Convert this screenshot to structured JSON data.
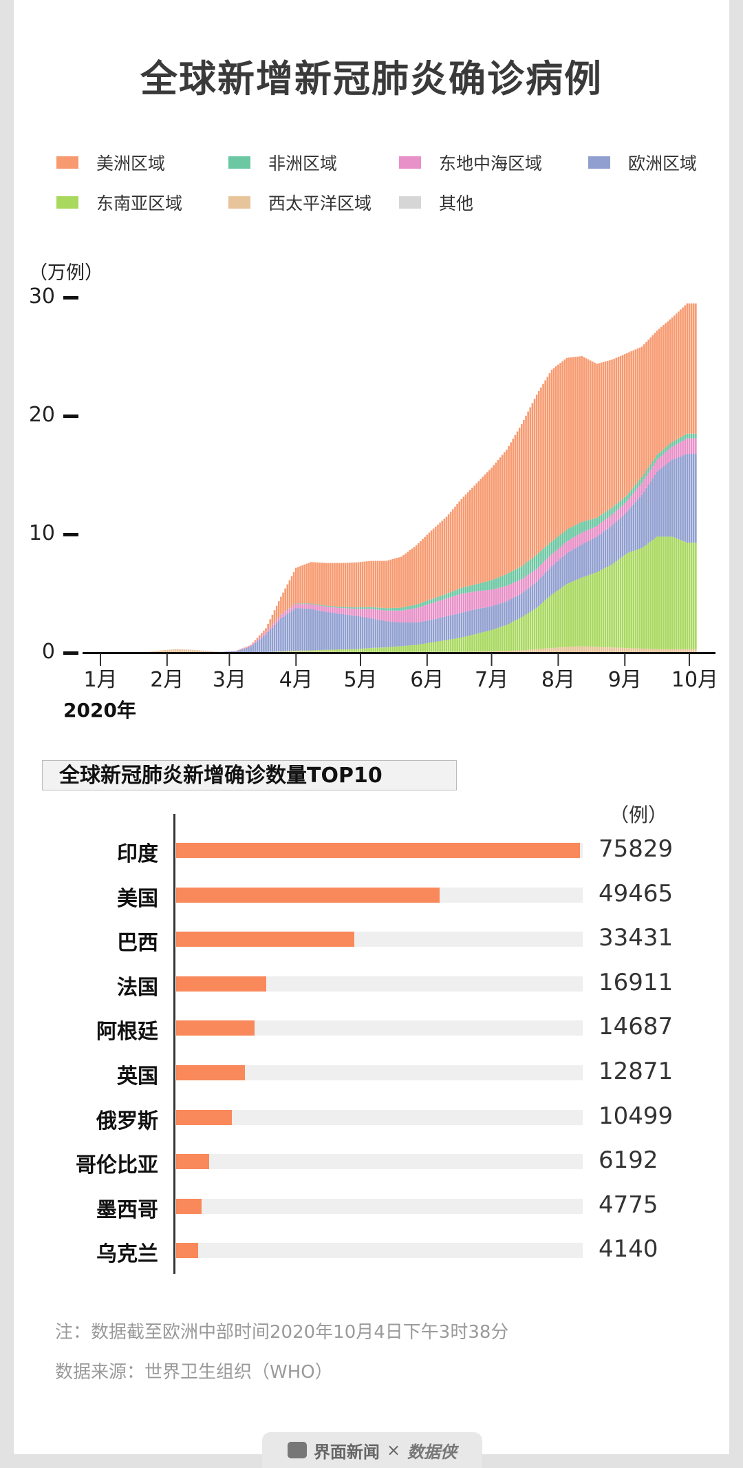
{
  "title": "全球新增新冠肺炎确诊病例",
  "legend": [
    {
      "label": "美洲区域",
      "color": "#f79a70"
    },
    {
      "label": "非洲区域",
      "color": "#6cc7a3"
    },
    {
      "label": "东地中海区域",
      "color": "#e890c8"
    },
    {
      "label": "欧洲区域",
      "color": "#919fd0"
    },
    {
      "label": "东南亚区域",
      "color": "#a8d85e"
    },
    {
      "label": "西太平洋区域",
      "color": "#e8c49a"
    },
    {
      "label": "其他",
      "color": "#d6d6d6"
    }
  ],
  "chart_data": [
    {
      "type": "bar",
      "stacked": true,
      "ylabel": "（万例）",
      "ylim": [
        0,
        33
      ],
      "yticks": [
        "0",
        "10",
        "20",
        "30"
      ],
      "xticks": [
        "1月",
        "2月",
        "3月",
        "4月",
        "5月",
        "6月",
        "7月",
        "8月",
        "9月",
        "10月"
      ],
      "xlabel": "2020年",
      "x": [
        "2020-01-01",
        "2020-01-08",
        "2020-01-15",
        "2020-01-22",
        "2020-01-29",
        "2020-02-05",
        "2020-02-12",
        "2020-02-19",
        "2020-02-26",
        "2020-03-04",
        "2020-03-11",
        "2020-03-18",
        "2020-03-25",
        "2020-04-01",
        "2020-04-08",
        "2020-04-15",
        "2020-04-22",
        "2020-04-29",
        "2020-05-06",
        "2020-05-13",
        "2020-05-20",
        "2020-05-27",
        "2020-06-03",
        "2020-06-10",
        "2020-06-17",
        "2020-06-24",
        "2020-07-01",
        "2020-07-08",
        "2020-07-15",
        "2020-07-22",
        "2020-07-29",
        "2020-08-05",
        "2020-08-12",
        "2020-08-19",
        "2020-08-26",
        "2020-09-02",
        "2020-09-09",
        "2020-09-16",
        "2020-09-23",
        "2020-09-30"
      ],
      "series": [
        {
          "name": "西太平洋区域",
          "color": "#e8c49a",
          "values": [
            0,
            0,
            0,
            0.05,
            0.2,
            0.3,
            0.25,
            0.15,
            0.05,
            0.03,
            0.03,
            0.05,
            0.08,
            0.1,
            0.1,
            0.1,
            0.08,
            0.06,
            0.06,
            0.06,
            0.06,
            0.07,
            0.07,
            0.08,
            0.08,
            0.1,
            0.12,
            0.15,
            0.2,
            0.3,
            0.4,
            0.5,
            0.55,
            0.5,
            0.45,
            0.4,
            0.35,
            0.3,
            0.3,
            0.3
          ]
        },
        {
          "name": "东南亚区域",
          "color": "#a8d85e",
          "values": [
            0,
            0,
            0,
            0,
            0,
            0,
            0,
            0,
            0,
            0,
            0,
            0.01,
            0.03,
            0.08,
            0.1,
            0.15,
            0.2,
            0.25,
            0.35,
            0.4,
            0.5,
            0.6,
            0.8,
            1.0,
            1.2,
            1.5,
            1.8,
            2.2,
            2.8,
            3.5,
            4.5,
            5.3,
            5.8,
            6.3,
            7.0,
            8.0,
            8.5,
            9.5,
            9.5,
            9.0
          ]
        },
        {
          "name": "欧洲区域",
          "color": "#919fd0",
          "values": [
            0,
            0,
            0,
            0,
            0,
            0,
            0,
            0,
            0.02,
            0.1,
            0.5,
            1.5,
            2.8,
            3.6,
            3.5,
            3.2,
            3.0,
            2.8,
            2.5,
            2.2,
            2.0,
            1.9,
            1.9,
            2.0,
            2.1,
            2.1,
            2.0,
            2.0,
            2.0,
            2.2,
            2.4,
            2.6,
            2.8,
            3.0,
            3.3,
            3.5,
            4.5,
            5.5,
            6.5,
            7.5
          ]
        },
        {
          "name": "东地中海区域",
          "color": "#e890c8",
          "values": [
            0,
            0,
            0,
            0,
            0,
            0,
            0,
            0,
            0,
            0.02,
            0.08,
            0.2,
            0.3,
            0.35,
            0.4,
            0.45,
            0.5,
            0.6,
            0.8,
            0.9,
            1.0,
            1.2,
            1.4,
            1.5,
            1.6,
            1.5,
            1.4,
            1.3,
            1.2,
            1.1,
            1.0,
            1.0,
            1.0,
            0.9,
            0.9,
            0.9,
            1.0,
            1.0,
            1.1,
            1.3
          ]
        },
        {
          "name": "非洲区域",
          "color": "#6cc7a3",
          "values": [
            0,
            0,
            0,
            0,
            0,
            0,
            0,
            0,
            0,
            0,
            0,
            0.01,
            0.02,
            0.04,
            0.06,
            0.08,
            0.1,
            0.12,
            0.15,
            0.2,
            0.25,
            0.3,
            0.35,
            0.4,
            0.5,
            0.6,
            0.8,
            1.0,
            1.1,
            1.2,
            1.1,
            1.0,
            0.9,
            0.7,
            0.6,
            0.5,
            0.5,
            0.4,
            0.4,
            0.4
          ]
        },
        {
          "name": "美洲区域",
          "color": "#f79a70",
          "values": [
            0,
            0,
            0,
            0,
            0,
            0,
            0,
            0,
            0,
            0.01,
            0.05,
            0.3,
            1.5,
            3.0,
            3.5,
            3.6,
            3.7,
            3.8,
            3.9,
            4.0,
            4.3,
            5.0,
            5.8,
            6.5,
            7.5,
            8.5,
            9.5,
            10.5,
            12,
            13.5,
            14.5,
            14.5,
            14,
            13,
            12.5,
            12,
            11,
            10.5,
            10.5,
            11
          ]
        },
        {
          "name": "其他",
          "color": "#d6d6d6",
          "values": [
            0,
            0,
            0,
            0,
            0,
            0.01,
            0.02,
            0.03,
            0.01,
            0,
            0,
            0,
            0,
            0,
            0,
            0,
            0,
            0,
            0,
            0,
            0,
            0,
            0,
            0,
            0,
            0,
            0,
            0,
            0,
            0,
            0,
            0,
            0,
            0,
            0,
            0,
            0,
            0,
            0,
            0
          ]
        }
      ]
    },
    {
      "type": "bar",
      "orientation": "horizontal",
      "title": "全球新冠肺炎新增确诊数量TOP10",
      "unit": "（例）",
      "categories": [
        "印度",
        "美国",
        "巴西",
        "法国",
        "阿根廷",
        "英国",
        "俄罗斯",
        "哥伦比亚",
        "墨西哥",
        "乌克兰"
      ],
      "values": [
        75829,
        49465,
        33431,
        16911,
        14687,
        12871,
        10499,
        6192,
        4775,
        4140
      ],
      "value_labels": [
        "75829",
        "49465",
        "33431",
        "16911",
        "14687",
        "12871",
        "10499",
        "6192",
        "4775",
        "4140"
      ],
      "color": "#f9885a",
      "track_color": "#efefef"
    }
  ],
  "notes": {
    "note": "注：数据截至欧洲中部时间2020年10月4日下午3时38分",
    "source": "数据来源：世界卫生组织（WHO）"
  },
  "footer": {
    "brand": "界面新闻",
    "times": "×",
    "partner": "数据侠"
  }
}
